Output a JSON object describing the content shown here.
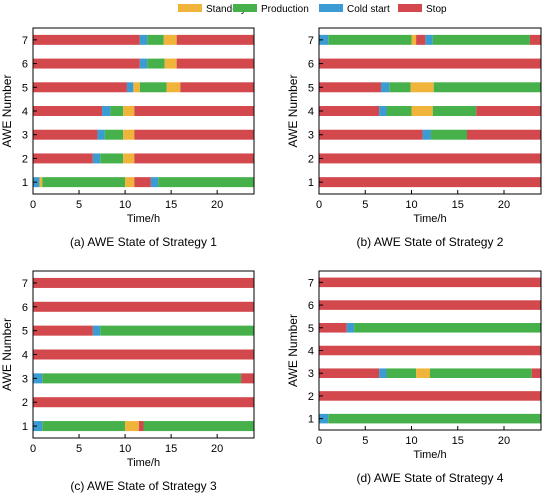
{
  "legend": {
    "placement": "top-center",
    "items": [
      {
        "key": "standby",
        "label": "Stand-by",
        "color": "#f0b43a"
      },
      {
        "key": "production",
        "label": "Production",
        "color": "#46b14b"
      },
      {
        "key": "coldstart",
        "label": "Cold start",
        "color": "#3b9bd3"
      },
      {
        "key": "stop",
        "label": "Stop",
        "color": "#d2484d"
      }
    ]
  },
  "chart_data": [
    {
      "type": "bar",
      "subtype": "state-timeline",
      "caption": "(a) AWE State of Strategy 1",
      "xlabel": "Time/h",
      "ylabel": "AWE Number",
      "xlim": [
        0,
        24
      ],
      "xticks": [
        0,
        5,
        10,
        15,
        20
      ],
      "yticks": [
        1,
        2,
        3,
        4,
        5,
        6,
        7
      ],
      "grid": false,
      "series": [
        {
          "awe": 1,
          "segments": [
            [
              "coldstart",
              0,
              0.7
            ],
            [
              "standby",
              0.7,
              1
            ],
            [
              "production",
              1,
              10
            ],
            [
              "standby",
              10,
              11
            ],
            [
              "stop",
              11,
              12.8
            ],
            [
              "coldstart",
              12.8,
              13.6
            ],
            [
              "production",
              13.6,
              24
            ]
          ]
        },
        {
          "awe": 2,
          "segments": [
            [
              "stop",
              0,
              6.5
            ],
            [
              "coldstart",
              6.5,
              7.3
            ],
            [
              "production",
              7.3,
              9.8
            ],
            [
              "standby",
              9.8,
              11
            ],
            [
              "stop",
              11,
              24
            ]
          ]
        },
        {
          "awe": 3,
          "segments": [
            [
              "stop",
              0,
              7
            ],
            [
              "coldstart",
              7,
              7.8
            ],
            [
              "production",
              7.8,
              9.8
            ],
            [
              "standby",
              9.8,
              11
            ],
            [
              "stop",
              11,
              24
            ]
          ]
        },
        {
          "awe": 4,
          "segments": [
            [
              "stop",
              0,
              7.5
            ],
            [
              "coldstart",
              7.5,
              8.4
            ],
            [
              "production",
              8.4,
              9.8
            ],
            [
              "standby",
              9.8,
              11
            ],
            [
              "stop",
              11,
              24
            ]
          ]
        },
        {
          "awe": 5,
          "segments": [
            [
              "stop",
              0,
              10.2
            ],
            [
              "coldstart",
              10.2,
              10.9
            ],
            [
              "standby",
              10.9,
              11.6
            ],
            [
              "production",
              11.6,
              14.5
            ],
            [
              "standby",
              14.5,
              16
            ],
            [
              "stop",
              16,
              24
            ]
          ]
        },
        {
          "awe": 6,
          "segments": [
            [
              "stop",
              0,
              11.6
            ],
            [
              "coldstart",
              11.6,
              12.4
            ],
            [
              "production",
              12.4,
              14.3
            ],
            [
              "standby",
              14.3,
              15.6
            ],
            [
              "stop",
              15.6,
              24
            ]
          ]
        },
        {
          "awe": 7,
          "segments": [
            [
              "stop",
              0,
              11.6
            ],
            [
              "coldstart",
              11.6,
              12.4
            ],
            [
              "production",
              12.4,
              14.2
            ],
            [
              "standby",
              14.2,
              15.6
            ],
            [
              "stop",
              15.6,
              24
            ]
          ]
        }
      ]
    },
    {
      "type": "bar",
      "subtype": "state-timeline",
      "caption": "(b) AWE State of Strategy 2",
      "xlabel": "Time/h",
      "ylabel": "AWE Number",
      "xlim": [
        0,
        24
      ],
      "xticks": [
        0,
        5,
        10,
        15,
        20
      ],
      "yticks": [
        1,
        2,
        3,
        4,
        5,
        6,
        7
      ],
      "grid": false,
      "series": [
        {
          "awe": 1,
          "segments": [
            [
              "stop",
              0,
              24
            ]
          ]
        },
        {
          "awe": 2,
          "segments": [
            [
              "stop",
              0,
              24
            ]
          ]
        },
        {
          "awe": 3,
          "segments": [
            [
              "stop",
              0,
              11.2
            ],
            [
              "coldstart",
              11.2,
              12.1
            ],
            [
              "production",
              12.1,
              16
            ],
            [
              "stop",
              16,
              24
            ]
          ]
        },
        {
          "awe": 4,
          "segments": [
            [
              "stop",
              0,
              6.5
            ],
            [
              "coldstart",
              6.5,
              7.3
            ],
            [
              "production",
              7.3,
              10
            ],
            [
              "standby",
              10,
              12.3
            ],
            [
              "production",
              12.3,
              17
            ],
            [
              "stop",
              17,
              24
            ]
          ]
        },
        {
          "awe": 5,
          "segments": [
            [
              "stop",
              0,
              6.7
            ],
            [
              "coldstart",
              6.7,
              7.6
            ],
            [
              "production",
              7.6,
              9.9
            ],
            [
              "standby",
              9.9,
              12.4
            ],
            [
              "production",
              12.4,
              24
            ]
          ]
        },
        {
          "awe": 6,
          "segments": [
            [
              "stop",
              0,
              24
            ]
          ]
        },
        {
          "awe": 7,
          "segments": [
            [
              "coldstart",
              0,
              1
            ],
            [
              "production",
              1,
              10
            ],
            [
              "standby",
              10,
              10.5
            ],
            [
              "stop",
              10.5,
              11.5
            ],
            [
              "coldstart",
              11.5,
              12.3
            ],
            [
              "production",
              12.3,
              22.8
            ],
            [
              "stop",
              22.8,
              24
            ]
          ]
        }
      ]
    },
    {
      "type": "bar",
      "subtype": "state-timeline",
      "caption": "(c) AWE State of Strategy 3",
      "xlabel": "Time/h",
      "ylabel": "AWE Number",
      "xlim": [
        0,
        24
      ],
      "xticks": [
        0,
        5,
        10,
        15,
        20
      ],
      "yticks": [
        1,
        2,
        3,
        4,
        5,
        6,
        7
      ],
      "grid": false,
      "series": [
        {
          "awe": 1,
          "segments": [
            [
              "coldstart",
              0,
              1
            ],
            [
              "production",
              1,
              10
            ],
            [
              "standby",
              10,
              11.5
            ],
            [
              "stop",
              11.5,
              12
            ],
            [
              "production",
              12,
              24
            ]
          ]
        },
        {
          "awe": 2,
          "segments": [
            [
              "stop",
              0,
              24
            ]
          ]
        },
        {
          "awe": 3,
          "segments": [
            [
              "coldstart",
              0,
              1
            ],
            [
              "production",
              1,
              22.6
            ],
            [
              "stop",
              22.6,
              24
            ]
          ]
        },
        {
          "awe": 4,
          "segments": [
            [
              "stop",
              0,
              24
            ]
          ]
        },
        {
          "awe": 5,
          "segments": [
            [
              "stop",
              0,
              6.5
            ],
            [
              "coldstart",
              6.5,
              7.3
            ],
            [
              "production",
              7.3,
              24
            ]
          ]
        },
        {
          "awe": 6,
          "segments": [
            [
              "stop",
              0,
              24
            ]
          ]
        },
        {
          "awe": 7,
          "segments": [
            [
              "stop",
              0,
              24
            ]
          ]
        }
      ]
    },
    {
      "type": "bar",
      "subtype": "state-timeline",
      "caption": "(d) AWE State of Strategy 4",
      "xlabel": "Time/h",
      "ylabel": "AWE Number",
      "xlim": [
        0,
        24
      ],
      "xticks": [
        0,
        5,
        10,
        15,
        20
      ],
      "yticks": [
        1,
        2,
        3,
        4,
        5,
        6,
        7
      ],
      "grid": false,
      "series": [
        {
          "awe": 1,
          "segments": [
            [
              "coldstart",
              0,
              1
            ],
            [
              "production",
              1,
              24
            ]
          ]
        },
        {
          "awe": 2,
          "segments": [
            [
              "stop",
              0,
              24
            ]
          ]
        },
        {
          "awe": 3,
          "segments": [
            [
              "stop",
              0,
              6.5
            ],
            [
              "coldstart",
              6.5,
              7.3
            ],
            [
              "production",
              7.3,
              10.5
            ],
            [
              "standby",
              10.5,
              12
            ],
            [
              "production",
              12,
              23
            ],
            [
              "stop",
              23,
              24
            ]
          ]
        },
        {
          "awe": 4,
          "segments": [
            [
              "stop",
              0,
              24
            ]
          ]
        },
        {
          "awe": 5,
          "segments": [
            [
              "stop",
              0,
              3
            ],
            [
              "coldstart",
              3,
              3.8
            ],
            [
              "production",
              3.8,
              24
            ]
          ]
        },
        {
          "awe": 6,
          "segments": [
            [
              "stop",
              0,
              24
            ]
          ]
        },
        {
          "awe": 7,
          "segments": [
            [
              "stop",
              0,
              24
            ]
          ]
        }
      ]
    }
  ]
}
